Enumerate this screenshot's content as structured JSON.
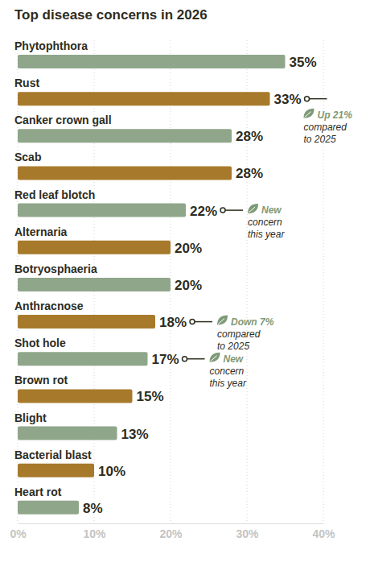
{
  "chart_data": {
    "type": "bar",
    "orientation": "horizontal",
    "title": "Top disease concerns in 2026",
    "categories": [
      "Phytophthora",
      "Rust",
      "Canker crown gall",
      "Scab",
      "Red leaf blotch",
      "Alternaria",
      "Botryosphaeria",
      "Anthracnose",
      "Shot hole",
      "Brown rot",
      "Blight",
      "Bacterial blast",
      "Heart rot"
    ],
    "values": [
      35,
      33,
      28,
      28,
      22,
      20,
      20,
      18,
      17,
      15,
      13,
      10,
      8
    ],
    "value_labels": [
      "35%",
      "33%",
      "28%",
      "28%",
      "22%",
      "20%",
      "20%",
      "18%",
      "17%",
      "15%",
      "13%",
      "10%",
      "8%"
    ],
    "colors": [
      "#8fa68a",
      "#a77a2b",
      "#8fa68a",
      "#a77a2b",
      "#8fa68a",
      "#a77a2b",
      "#8fa68a",
      "#a77a2b",
      "#8fa68a",
      "#a77a2b",
      "#8fa68a",
      "#a77a2b",
      "#8fa68a"
    ],
    "xlim": [
      0,
      40
    ],
    "xticks": [
      {
        "value": 0,
        "label": "0%"
      },
      {
        "value": 10,
        "label": "10%"
      },
      {
        "value": 20,
        "label": "20%"
      },
      {
        "value": 30,
        "label": "30%"
      },
      {
        "value": 40,
        "label": "40%"
      }
    ],
    "grid": true,
    "data_labels": true,
    "annotations": [
      {
        "category": "Rust",
        "lines": [
          "Up 21%",
          "compared",
          "to 2025"
        ]
      },
      {
        "category": "Red leaf blotch",
        "lines": [
          "New",
          "concern",
          "this year"
        ]
      },
      {
        "category": "Anthracnose",
        "lines": [
          "Down 7%",
          "compared",
          "to 2025"
        ]
      },
      {
        "category": "Shot hole",
        "lines": [
          "New",
          "concern",
          "this year"
        ]
      }
    ]
  }
}
